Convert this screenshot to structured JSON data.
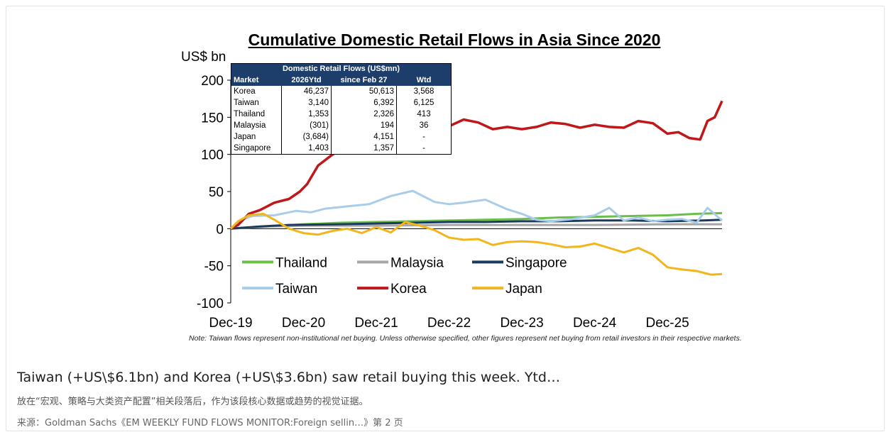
{
  "caption": "Taiwan (+US\\$6.1bn) and Korea (+US\\$3.6bn) saw retail buying this week. Ytd…",
  "description": "放在“宏观、策略与大类资产配置”相关段落后，作为该段核心数据或趋势的视觉证据。",
  "source": "来源：Goldman Sachs《EM WEEKLY FUND FLOWS MONITOR:Foreign sellin…》第 2 页",
  "table": {
    "title": "Domestic Retail Flows (US$mn)",
    "headers": [
      "Market",
      "2026Ytd",
      "since Feb 27",
      "Wtd"
    ],
    "rows": [
      [
        "Korea",
        "46,237",
        "50,613",
        "3,568"
      ],
      [
        "Taiwan",
        "3,140",
        "6,392",
        "6,125"
      ],
      [
        "Thailand",
        "1,353",
        "2,326",
        "413"
      ],
      [
        "Malaysia",
        "(301)",
        "194",
        "36"
      ],
      [
        "Japan",
        "(3,684)",
        "4,151",
        "-"
      ],
      [
        "Singapore",
        "1,403",
        "1,357",
        "-"
      ]
    ]
  },
  "chart_data": {
    "type": "line",
    "title": "Cumulative Domestic Retail Flows in Asia Since 2020",
    "ylabel": "US$ bn",
    "xlabel": "",
    "ylim": [
      -100,
      200
    ],
    "yticks": [
      "200",
      "150",
      "100",
      "50",
      "0",
      "-50",
      "-100"
    ],
    "x_tick_labels": [
      "Dec-19",
      "Dec-20",
      "Dec-21",
      "Dec-22",
      "Dec-23",
      "Dec-24",
      "Dec-25"
    ],
    "x_tick_values": [
      2020.0,
      2021.0,
      2022.0,
      2023.0,
      2024.0,
      2025.0,
      2026.0
    ],
    "xlim": [
      2020.0,
      2026.75
    ],
    "legend": [
      "Thailand",
      "Malaysia",
      "Singapore",
      "Taiwan",
      "Korea",
      "Japan"
    ],
    "note": "Note: Taiwan flows represent non-institutional net buying. Unless otherwise specified, other figures represent net buying from retail investors in their respective markets.",
    "series": [
      {
        "name": "Thailand",
        "color": "#6abf4b",
        "width": 3,
        "x": [
          2020.0,
          2020.5,
          2021.0,
          2021.5,
          2022.0,
          2022.5,
          2023.0,
          2023.5,
          2024.0,
          2024.5,
          2025.0,
          2025.5,
          2026.0,
          2026.4,
          2026.75
        ],
        "y": [
          0,
          3,
          6,
          8,
          9,
          10,
          11,
          12,
          13,
          15,
          16,
          17,
          18,
          20,
          21
        ]
      },
      {
        "name": "Malaysia",
        "color": "#a6a6a6",
        "width": 3,
        "x": [
          2020.0,
          2020.5,
          2021.0,
          2022.0,
          2023.0,
          2024.0,
          2025.0,
          2026.0,
          2026.75
        ],
        "y": [
          0,
          3,
          4,
          4,
          5,
          5,
          5,
          6,
          6
        ]
      },
      {
        "name": "Singapore",
        "color": "#1a3a5e",
        "width": 3,
        "x": [
          2020.0,
          2020.4,
          2020.8,
          2021.5,
          2022.0,
          2022.5,
          2023.0,
          2023.5,
          2024.0,
          2024.5,
          2025.0,
          2025.5,
          2026.0,
          2026.5,
          2026.75
        ],
        "y": [
          0,
          3,
          5,
          6,
          7,
          8,
          9,
          9,
          10,
          10,
          11,
          11,
          10,
          11,
          12
        ]
      },
      {
        "name": "Taiwan",
        "color": "#a9cde9",
        "width": 3,
        "x": [
          2020.0,
          2020.15,
          2020.3,
          2020.6,
          2020.9,
          2021.1,
          2021.3,
          2021.6,
          2021.9,
          2022.2,
          2022.5,
          2022.8,
          2023.0,
          2023.2,
          2023.5,
          2023.8,
          2024.0,
          2024.2,
          2024.4,
          2024.7,
          2025.0,
          2025.2,
          2025.4,
          2025.6,
          2025.8,
          2026.0,
          2026.2,
          2026.4,
          2026.55,
          2026.75
        ],
        "y": [
          0,
          12,
          17,
          18,
          24,
          22,
          27,
          30,
          33,
          44,
          51,
          36,
          33,
          35,
          39,
          26,
          20,
          12,
          10,
          13,
          18,
          28,
          11,
          15,
          10,
          12,
          13,
          8,
          28,
          11
        ]
      },
      {
        "name": "Korea",
        "color": "#c0171b",
        "width": 3.5,
        "x": [
          2020.0,
          2020.1,
          2020.25,
          2020.4,
          2020.6,
          2020.8,
          2020.95,
          2021.05,
          2021.2,
          2021.4,
          2021.6,
          2021.8,
          2022.0,
          2022.2,
          2022.4,
          2022.6,
          2022.8,
          2023.0,
          2023.2,
          2023.4,
          2023.6,
          2023.8,
          2024.0,
          2024.2,
          2024.4,
          2024.6,
          2024.8,
          2025.0,
          2025.2,
          2025.4,
          2025.6,
          2025.8,
          2026.0,
          2026.15,
          2026.3,
          2026.45,
          2026.55,
          2026.65,
          2026.75
        ],
        "y": [
          0,
          5,
          20,
          25,
          35,
          40,
          50,
          60,
          85,
          100,
          112,
          128,
          135,
          140,
          146,
          143,
          141,
          138,
          147,
          143,
          134,
          137,
          134,
          137,
          143,
          141,
          136,
          140,
          137,
          136,
          145,
          142,
          128,
          130,
          122,
          120,
          145,
          150,
          172
        ]
      },
      {
        "name": "Japan",
        "color": "#f2b51c",
        "width": 3,
        "x": [
          2020.0,
          2020.1,
          2020.25,
          2020.45,
          2020.6,
          2020.8,
          2021.0,
          2021.2,
          2021.4,
          2021.6,
          2021.8,
          2022.0,
          2022.2,
          2022.4,
          2022.6,
          2022.8,
          2023.0,
          2023.2,
          2023.4,
          2023.6,
          2023.8,
          2024.0,
          2024.2,
          2024.4,
          2024.6,
          2024.8,
          2025.0,
          2025.2,
          2025.4,
          2025.6,
          2025.8,
          2026.0,
          2026.2,
          2026.4,
          2026.6,
          2026.75
        ],
        "y": [
          0,
          10,
          18,
          20,
          12,
          0,
          -6,
          -8,
          -3,
          0,
          -6,
          2,
          -5,
          9,
          4,
          -2,
          -12,
          -15,
          -14,
          -22,
          -18,
          -17,
          -18,
          -21,
          -25,
          -24,
          -20,
          -26,
          -32,
          -26,
          -35,
          -52,
          -55,
          -57,
          -62,
          -61
        ]
      }
    ]
  }
}
